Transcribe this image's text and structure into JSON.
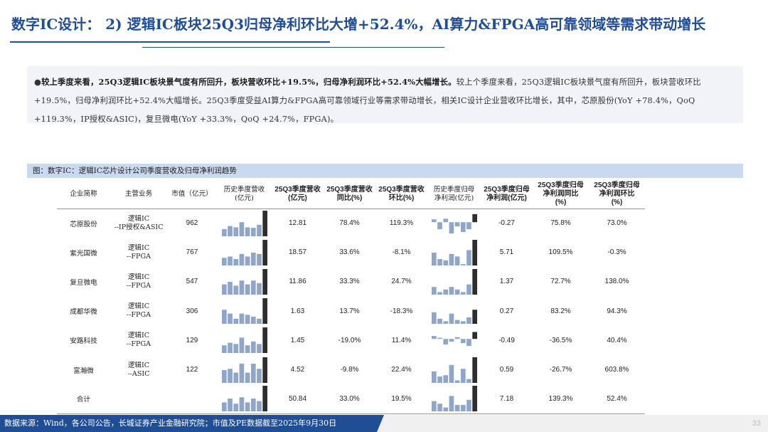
{
  "title": "数字IC设计： 2) 逻辑IC板块25Q3归母净利环比大增+52.4%，AI算力&FPGA高可靠领域等需求带动增长",
  "summary": {
    "bullet": "●",
    "lead": "较上季度来看，25Q3逻辑IC板块景气度有所回升，板块营收环比+19.5%，归母净利润环比+52.4%大幅增长。",
    "body": "较上个季度来看，25Q3逻辑IC板块景气度有所回升，板块营收环比+19.5%，归母净利润环比+52.4%大幅增长。25Q3季度受益AI算力&FPGA高可靠领域行业等需求带动增长，相关IC设计企业营收环比增长，其中，芯原股份(YoY +78.4%，QoQ +119.3%，IP授权&ASIC)，复旦微电(YoY +33.3%，QoQ +24.7%，FPGA)。"
  },
  "figure_caption": "图：数字IC：逻辑IC芯片设计公司季度营收及归母净利润趋势",
  "table": {
    "headers": {
      "company": "企业简称",
      "business": "主营业务",
      "mktcap": "市值（亿元）",
      "rev_hist_1": "历史季度营收",
      "rev_hist_2": "(亿元)",
      "rev_q_1": "25Q3季度营收",
      "rev_q_2": "(亿元)",
      "rev_yoy_1": "25Q3季度营收",
      "rev_yoy_2": "同比(%)",
      "rev_qoq_1": "25Q3季度营收",
      "rev_qoq_2": "环比(%)",
      "np_hist_1": "历史季度归母",
      "np_hist_2": "净利润(亿元)",
      "np_q_1": "25Q3季度归母",
      "np_q_2": "净利润(亿元)",
      "np_yoy_1": "25Q3季度归母",
      "np_yoy_2": "净利润同比",
      "np_yoy_3": "(%)",
      "np_qoq_1": "25Q3季度归母",
      "np_qoq_2": "净利润环比",
      "np_qoq_3": "(%)"
    },
    "rows": [
      {
        "company": "芯原股份",
        "biz1": "逻辑IC",
        "biz2": "--IP授权&ASIC",
        "mktcap": "962",
        "rev": "12.81",
        "rev_yoy": "78.4%",
        "rev_qoq": "119.3%",
        "np": "-0.27",
        "np_yoy": "75.8%",
        "np_qoq": "73.0%"
      },
      {
        "company": "紫光国微",
        "biz1": "逻辑IC",
        "biz2": "--FPGA",
        "mktcap": "767",
        "rev": "18.57",
        "rev_yoy": "33.6%",
        "rev_qoq": "-8.1%",
        "np": "5.71",
        "np_yoy": "109.5%",
        "np_qoq": "-0.3%"
      },
      {
        "company": "复旦微电",
        "biz1": "逻辑IC",
        "biz2": "--FPGA",
        "mktcap": "547",
        "rev": "11.86",
        "rev_yoy": "33.3%",
        "rev_qoq": "24.7%",
        "np": "1.37",
        "np_yoy": "72.7%",
        "np_qoq": "138.0%"
      },
      {
        "company": "成都华微",
        "biz1": "逻辑IC",
        "biz2": "--FPGA",
        "mktcap": "306",
        "rev": "1.63",
        "rev_yoy": "13.7%",
        "rev_qoq": "-18.3%",
        "np": "0.27",
        "np_yoy": "83.2%",
        "np_qoq": "94.3%"
      },
      {
        "company": "安路科技",
        "biz1": "逻辑IC",
        "biz2": "--FPGA",
        "mktcap": "129",
        "rev": "1.45",
        "rev_yoy": "-19.0%",
        "rev_qoq": "11.4%",
        "np": "-0.49",
        "np_yoy": "-36.5%",
        "np_qoq": "40.4%"
      },
      {
        "company": "富瀚微",
        "biz1": "逻辑IC",
        "biz2": "--ASIC",
        "mktcap": "122",
        "rev": "4.52",
        "rev_yoy": "-9.8%",
        "rev_qoq": "22.4%",
        "np": "0.59",
        "np_yoy": "-26.7%",
        "np_qoq": "603.8%"
      },
      {
        "company": "合计",
        "biz1": "",
        "biz2": "",
        "mktcap": "",
        "rev": "50.84",
        "rev_yoy": "33.0%",
        "rev_qoq": "19.5%",
        "np": "7.18",
        "np_yoy": "139.3%",
        "np_qoq": "52.4%"
      }
    ],
    "sparklines_revenue": [
      [
        0.28,
        0.4,
        0.35,
        0.55,
        0.35,
        0.33,
        0.45,
        1.0
      ],
      [
        0.3,
        0.35,
        0.25,
        0.45,
        0.35,
        0.5,
        0.45,
        1.0
      ],
      [
        0.4,
        0.5,
        0.35,
        0.55,
        0.4,
        0.55,
        0.45,
        1.0
      ],
      [
        0.55,
        0.4,
        0.2,
        0.4,
        0.35,
        0.28,
        0.2,
        1.0
      ],
      [
        0.3,
        0.4,
        0.35,
        0.6,
        0.3,
        0.45,
        0.35,
        1.0
      ],
      [
        0.5,
        0.55,
        0.4,
        0.75,
        0.4,
        0.75,
        0.55,
        1.0
      ],
      [
        0.35,
        0.5,
        0.3,
        0.55,
        0.35,
        0.5,
        0.4,
        1.0
      ]
    ],
    "sparklines_profit": [
      [
        0.25,
        -0.5,
        0.3,
        -0.8,
        -0.3,
        -0.7,
        -0.5,
        0.7
      ],
      [
        0.5,
        0.25,
        0.2,
        0.45,
        0.35,
        0.05,
        0.6,
        1.0
      ],
      [
        0.3,
        0.1,
        0.2,
        0.3,
        0.2,
        0.1,
        0.4,
        1.0
      ],
      [
        0.45,
        0.2,
        0.1,
        0.4,
        0.15,
        0.1,
        0.25,
        0.55
      ],
      [
        0.25,
        0.1,
        -0.4,
        -0.2,
        0.15,
        -0.3,
        -0.5,
        0.6
      ],
      [
        0.45,
        0.25,
        0.3,
        0.7,
        0.1,
        0.55,
        0.15,
        1.0
      ],
      [
        0.4,
        0.3,
        0.15,
        0.6,
        0.25,
        0.25,
        0.45,
        1.0
      ]
    ],
    "spark_color_hist": "#8fa6c9",
    "spark_color_latest": "#2e2e2e"
  },
  "footer": {
    "source": "数据来源：Wind，各公司公告，长城证券产业金融研究院；市值及PE数据截至2025年9月30日",
    "page": "33"
  }
}
